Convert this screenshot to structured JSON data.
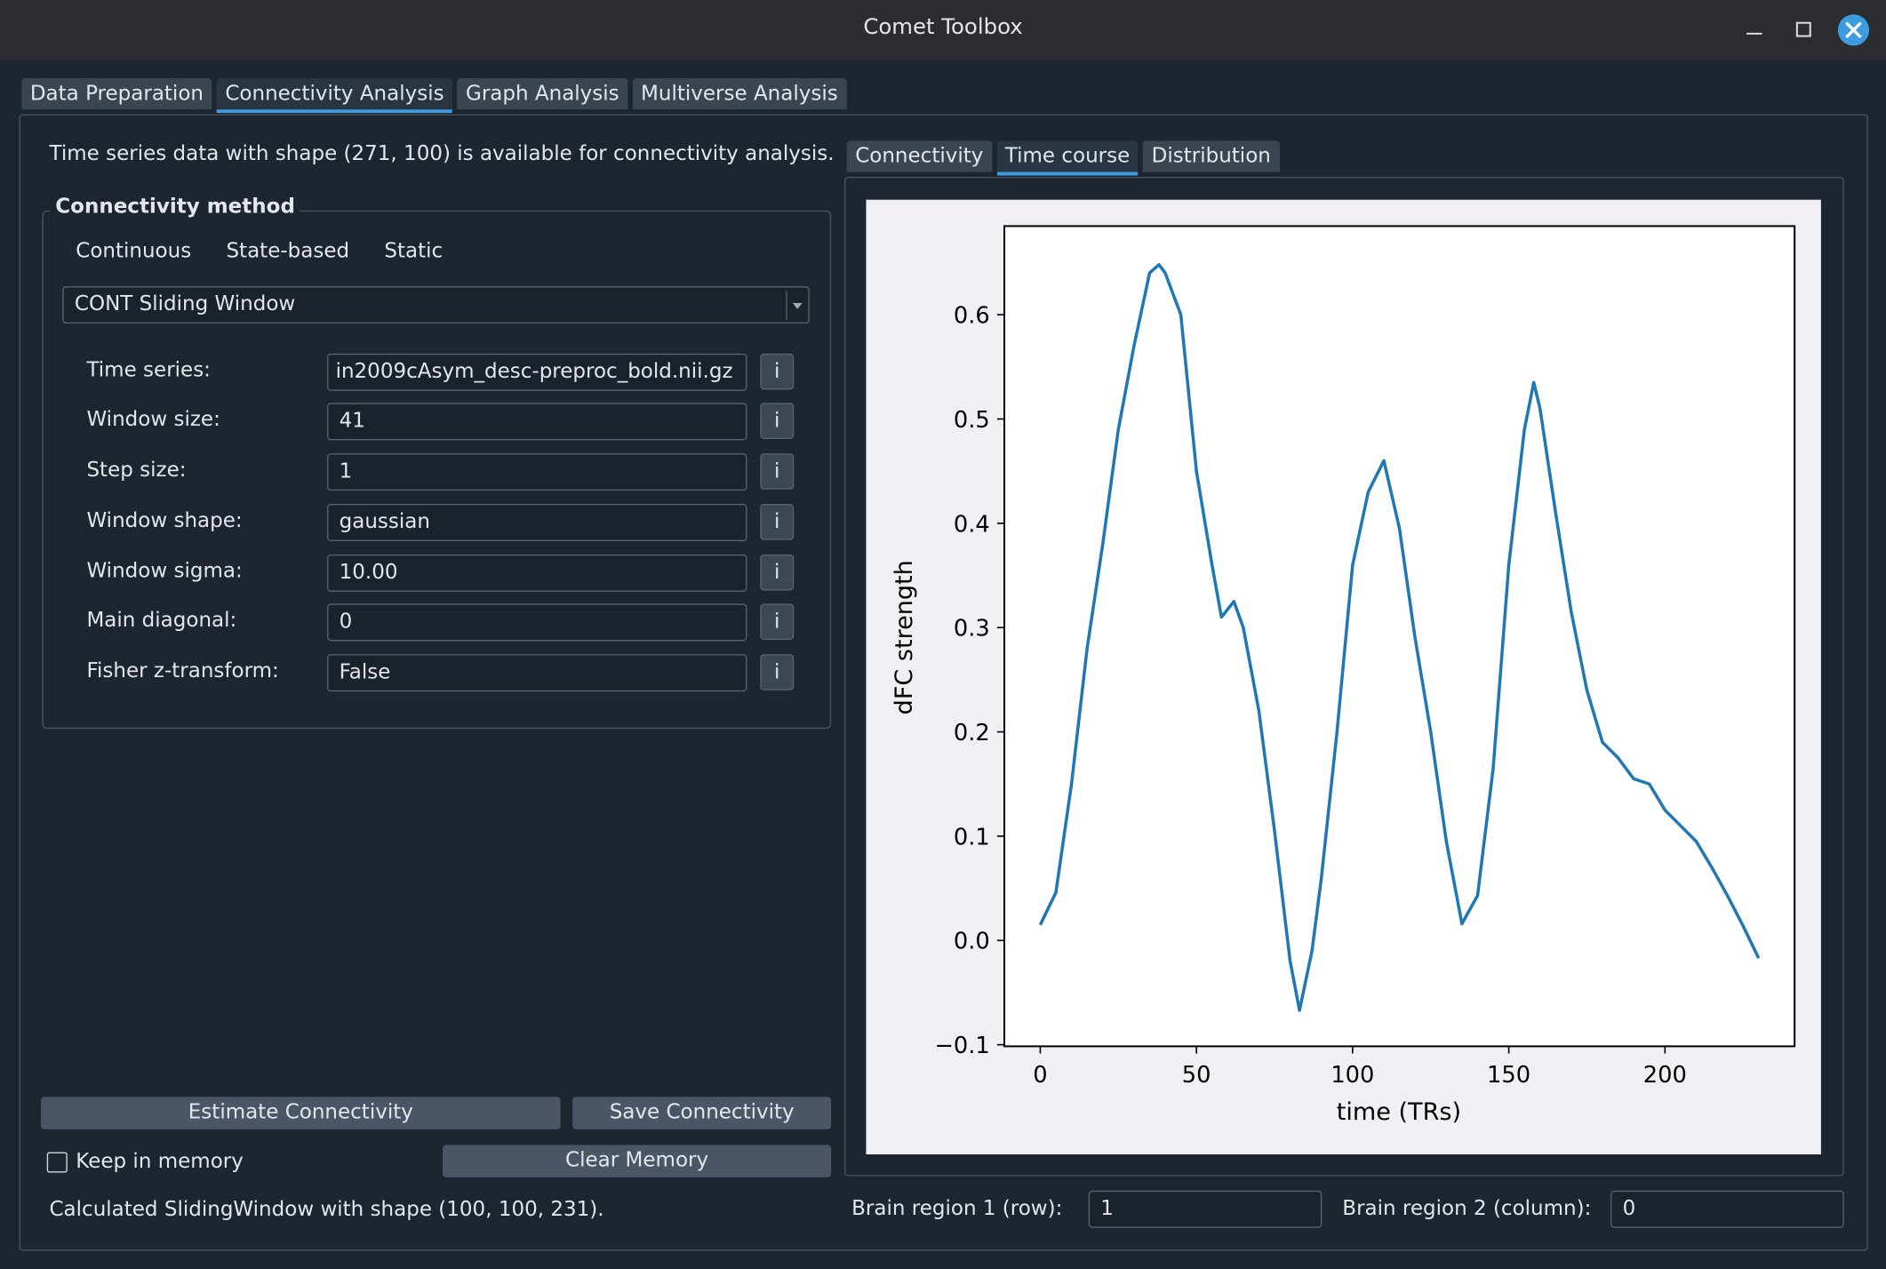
{
  "window": {
    "title": "Comet Toolbox"
  },
  "tabs": [
    "Data Preparation",
    "Connectivity Analysis",
    "Graph Analysis",
    "Multiverse Analysis"
  ],
  "info_text": "Time series data with shape (271, 100) is available for connectivity analysis.",
  "method_group": {
    "title": "Connectivity method",
    "checkboxes": [
      "Continuous",
      "State-based",
      "Static"
    ],
    "selected_method": "CONT Sliding Window"
  },
  "parameters": [
    {
      "label": "Time series:",
      "value": "in2009cAsym_desc-preproc_bold.nii.gz",
      "kind": "text"
    },
    {
      "label": "Window size:",
      "value": "41",
      "kind": "spin"
    },
    {
      "label": "Step size:",
      "value": "1",
      "kind": "spin"
    },
    {
      "label": "Window shape:",
      "value": "gaussian",
      "kind": "combo"
    },
    {
      "label": "Window sigma:",
      "value": "10.00",
      "kind": "spin"
    },
    {
      "label": "Main diagonal:",
      "value": "0",
      "kind": "spin"
    },
    {
      "label": "Fisher z-transform:",
      "value": "False",
      "kind": "combo"
    }
  ],
  "info_button": "i",
  "buttons": {
    "estimate": "Estimate Connectivity",
    "save": "Save Connectivity",
    "clear": "Clear Memory"
  },
  "keep_in_memory": "Keep in memory",
  "status_text": "Calculated SlidingWindow with shape (100, 100, 231).",
  "plot_tabs": [
    "Connectivity",
    "Time course",
    "Distribution"
  ],
  "brain_region_1": {
    "label": "Brain region 1 (row):",
    "value": "1"
  },
  "brain_region_2": {
    "label": "Brain region 2 (column):",
    "value": "0"
  },
  "chart_data": {
    "type": "line",
    "xlabel": "time (TRs)",
    "ylabel": "dFC strength",
    "color": "#1f77b4",
    "x": [
      0,
      5,
      10,
      15,
      20,
      25,
      30,
      35,
      38,
      40,
      45,
      50,
      55,
      58,
      62,
      65,
      70,
      75,
      80,
      83,
      87,
      90,
      95,
      100,
      105,
      110,
      115,
      120,
      125,
      130,
      135,
      140,
      145,
      150,
      155,
      158,
      160,
      165,
      170,
      175,
      180,
      185,
      190,
      195,
      200,
      205,
      210,
      215,
      220,
      225,
      230
    ],
    "values": [
      0.015,
      0.046,
      0.15,
      0.28,
      0.38,
      0.49,
      0.57,
      0.64,
      0.648,
      0.64,
      0.6,
      0.45,
      0.36,
      0.31,
      0.325,
      0.3,
      0.22,
      0.105,
      -0.02,
      -0.067,
      -0.01,
      0.06,
      0.2,
      0.36,
      0.43,
      0.46,
      0.395,
      0.29,
      0.2,
      0.095,
      0.016,
      0.043,
      0.165,
      0.36,
      0.49,
      0.535,
      0.51,
      0.41,
      0.315,
      0.24,
      0.19,
      0.175,
      0.155,
      0.15,
      0.125,
      0.11,
      0.095,
      0.07,
      0.043,
      0.014,
      -0.017
    ],
    "xlim": [
      -11.5,
      241.5
    ],
    "ylim": [
      -0.1015,
      0.685
    ],
    "xticks": [
      0,
      50,
      100,
      150,
      200
    ],
    "yticks": [
      {
        "value": -0.1,
        "label": "−0.1"
      },
      {
        "value": 0,
        "label": "0.0"
      },
      0.1,
      0.2,
      0.3,
      0.4,
      0.5,
      0.6
    ]
  }
}
